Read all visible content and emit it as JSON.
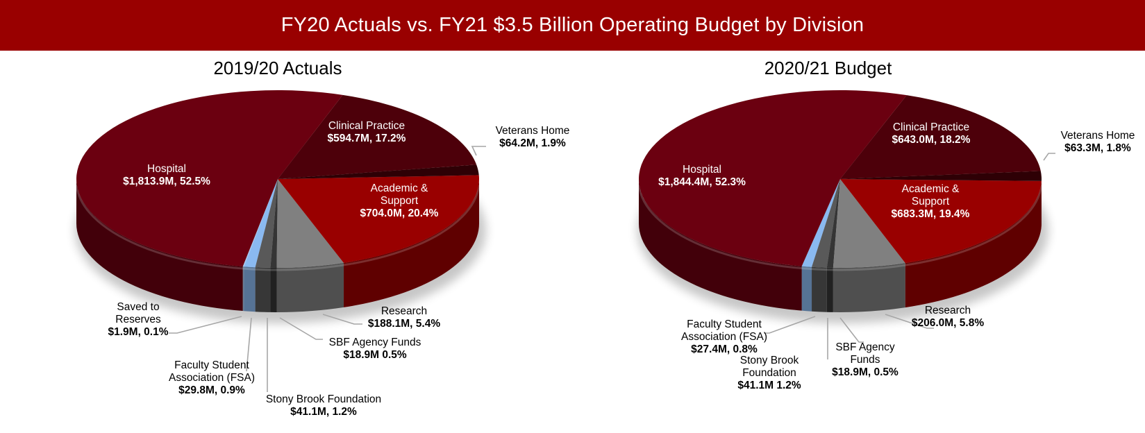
{
  "header": {
    "title": "FY20 Actuals vs. FY21 $3.5 Billion Operating Budget by Division",
    "background": "#990000"
  },
  "colors": {
    "hospital": "#6b0010",
    "clinical_practice": "#4d000a",
    "veterans_home": "#2e0005",
    "academic_support": "#990000",
    "research": "#808080",
    "sbf_agency": "#353535",
    "stony_brook_foundation": "#595959",
    "fsa": "#8ab9f0",
    "saved_reserves": "#a9c9ef"
  },
  "charts": [
    {
      "title": "2019/20 Actuals",
      "labels": {
        "hospital": {
          "name": "Hospital",
          "value": "$1,813.9M, 52.5%"
        },
        "clinical_practice": {
          "name": "Clinical Practice",
          "value": "$594.7M, 17.2%"
        },
        "veterans_home": {
          "name": "Veterans Home",
          "value": "$64.2M, 1.9%"
        },
        "academic_support": {
          "name1": "Academic &",
          "name2": "Support",
          "value": "$704.0M, 20.4%"
        },
        "research": {
          "name": "Research",
          "value": "$188.1M, 5.4%"
        },
        "sbf_agency": {
          "name": "SBF Agency Funds",
          "value": "$18.9M 0.5%"
        },
        "stony_brook_foundation": {
          "name": "Stony Brook Foundation",
          "value": "$41.1M, 1.2%"
        },
        "fsa": {
          "name1": "Faculty Student",
          "name2": "Association (FSA)",
          "value": "$29.8M, 0.9%"
        },
        "saved_reserves": {
          "name1": "Saved to",
          "name2": "Reserves",
          "value": "$1.9M, 0.1%"
        }
      }
    },
    {
      "title": "2020/21 Budget",
      "labels": {
        "hospital": {
          "name": "Hospital",
          "value": "$1,844.4M, 52.3%"
        },
        "clinical_practice": {
          "name": "Clinical Practice",
          "value": "$643.0M, 18.2%"
        },
        "veterans_home": {
          "name": "Veterans Home",
          "value": "$63.3M, 1.8%"
        },
        "academic_support": {
          "name1": "Academic &",
          "name2": "Support",
          "value": "$683.3M, 19.4%"
        },
        "research": {
          "name": "Research",
          "value": "$206.0M, 5.8%"
        },
        "sbf_agency": {
          "name1": "SBF Agency",
          "name2": "Funds",
          "value": "$18.9M, 0.5%"
        },
        "stony_brook_foundation": {
          "name1": "Stony Brook",
          "name2": "Foundation",
          "value": "$41.1M 1.2%"
        },
        "fsa": {
          "name1": "Faculty Student",
          "name2": "Association (FSA)",
          "value": "$27.4M, 0.8%"
        }
      }
    }
  ],
  "chart_data": [
    {
      "type": "pie",
      "title": "2019/20 Actuals",
      "subtitle": "FY20 Actuals vs. FY21 $3.5 Billion Operating Budget by Division",
      "categories": [
        "Saved to Reserves",
        "Faculty Student Association (FSA)",
        "Stony Brook Foundation",
        "SBF Agency Funds",
        "Research",
        "Academic & Support",
        "Veterans Home",
        "Clinical Practice",
        "Hospital"
      ],
      "values_millions": [
        1.9,
        29.8,
        41.1,
        18.9,
        188.1,
        704.0,
        64.2,
        594.7,
        1813.9
      ],
      "percentages": [
        0.1,
        0.9,
        1.2,
        0.5,
        5.4,
        20.4,
        1.9,
        17.2,
        52.5
      ],
      "units": "$M",
      "style": "3d"
    },
    {
      "type": "pie",
      "title": "2020/21 Budget",
      "subtitle": "FY20 Actuals vs. FY21 $3.5 Billion Operating Budget by Division",
      "categories": [
        "Faculty Student Association (FSA)",
        "Stony Brook Foundation",
        "SBF Agency Funds",
        "Research",
        "Academic & Support",
        "Veterans Home",
        "Clinical Practice",
        "Hospital"
      ],
      "values_millions": [
        27.4,
        41.1,
        18.9,
        206.0,
        683.3,
        63.3,
        643.0,
        1844.4
      ],
      "percentages": [
        0.8,
        1.2,
        0.5,
        5.8,
        19.4,
        1.8,
        18.2,
        52.3
      ],
      "units": "$M",
      "style": "3d"
    }
  ]
}
